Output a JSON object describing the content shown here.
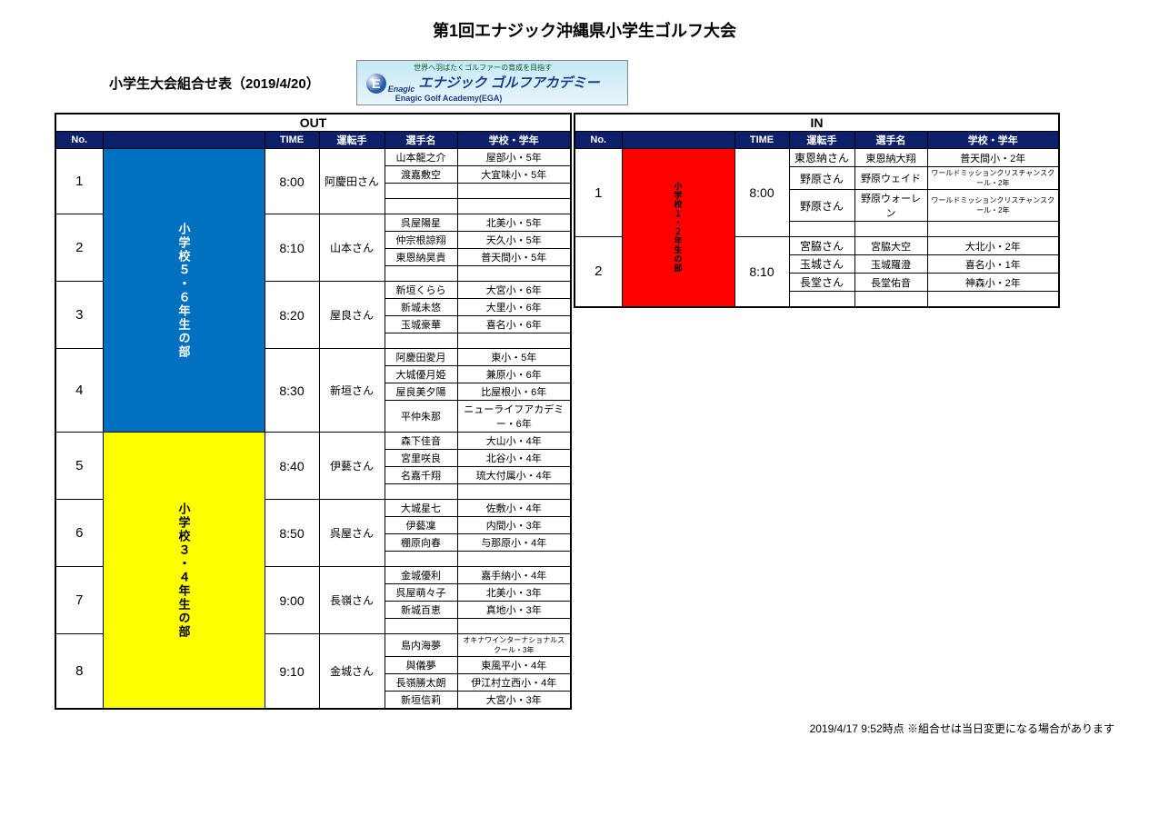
{
  "title": "第1回エナジック沖縄県小学生ゴルフ大会",
  "subtitle": "小学生大会組合せ表（2019/4/20）",
  "logo": {
    "tagline": "世界へ羽ばたくゴルファーの育成を目指す",
    "main_jp": "エナジック ゴルフアカデミー",
    "brand": "Enagic",
    "main_en": "Enagic Golf Academy(EGA)"
  },
  "headers": {
    "out": "OUT",
    "in": "IN",
    "no": "No.",
    "time": "TIME",
    "driver": "運転手",
    "player": "選手名",
    "school": "学校・学年"
  },
  "categories": {
    "blue": "小学校５・６年生の部",
    "yellow": "小学校３・４年生の部",
    "red": "小学校１・２年生の部"
  },
  "out_groups": [
    {
      "no": "1",
      "time": "8:00",
      "driver": "阿慶田さん",
      "players": [
        {
          "name": "山本龍之介",
          "school": "屋部小・5年"
        },
        {
          "name": "渡嘉敷空",
          "school": "大宜味小・5年"
        },
        {
          "name": "",
          "school": ""
        },
        {
          "name": "",
          "school": ""
        }
      ]
    },
    {
      "no": "2",
      "time": "8:10",
      "driver": "山本さん",
      "players": [
        {
          "name": "呉屋陽星",
          "school": "北美小・5年"
        },
        {
          "name": "仲宗根諒翔",
          "school": "天久小・5年"
        },
        {
          "name": "東恩納昊貴",
          "school": "普天間小・5年"
        },
        {
          "name": "",
          "school": ""
        }
      ]
    },
    {
      "no": "3",
      "time": "8:20",
      "driver": "屋良さん",
      "players": [
        {
          "name": "新垣くらら",
          "school": "大宮小・6年"
        },
        {
          "name": "新城未悠",
          "school": "大里小・6年"
        },
        {
          "name": "玉城豪華",
          "school": "喜名小・6年"
        },
        {
          "name": "",
          "school": ""
        }
      ]
    },
    {
      "no": "4",
      "time": "8:30",
      "driver": "新垣さん",
      "players": [
        {
          "name": "阿慶田愛月",
          "school": "東小・5年"
        },
        {
          "name": "大城優月姫",
          "school": "兼原小・6年"
        },
        {
          "name": "屋良美夕陽",
          "school": "比屋根小・6年"
        },
        {
          "name": "平仲朱那",
          "school": "ニューライフアカデミー・6年"
        }
      ]
    },
    {
      "no": "5",
      "time": "8:40",
      "driver": "伊藝さん",
      "players": [
        {
          "name": "森下佳音",
          "school": "大山小・4年"
        },
        {
          "name": "宮里咲良",
          "school": "北谷小・4年"
        },
        {
          "name": "名嘉千翔",
          "school": "琉大付属小・4年"
        },
        {
          "name": "",
          "school": ""
        }
      ]
    },
    {
      "no": "6",
      "time": "8:50",
      "driver": "呉屋さん",
      "players": [
        {
          "name": "大城星七",
          "school": "佐敷小・4年"
        },
        {
          "name": "伊藝凜",
          "school": "内間小・3年"
        },
        {
          "name": "棚原向春",
          "school": "与那原小・4年"
        },
        {
          "name": "",
          "school": ""
        }
      ]
    },
    {
      "no": "7",
      "time": "9:00",
      "driver": "長嶺さん",
      "players": [
        {
          "name": "金城優利",
          "school": "嘉手納小・4年"
        },
        {
          "name": "呉屋萌々子",
          "school": "北美小・3年"
        },
        {
          "name": "新城百恵",
          "school": "真地小・3年"
        },
        {
          "name": "",
          "school": ""
        }
      ]
    },
    {
      "no": "8",
      "time": "9:10",
      "driver": "金城さん",
      "players": [
        {
          "name": "島内海夢",
          "school": "オキナワインターナショナルスクール・3年",
          "small": true
        },
        {
          "name": "與儀夢",
          "school": "東風平小・4年"
        },
        {
          "name": "長嶺勝太朗",
          "school": "伊江村立西小・4年"
        },
        {
          "name": "新垣信莉",
          "school": "大宮小・3年"
        }
      ]
    }
  ],
  "in_groups": [
    {
      "no": "1",
      "time": "8:00",
      "players": [
        {
          "driver": "東恩納さん",
          "name": "東恩納大翔",
          "school": "普天間小・2年"
        },
        {
          "driver": "野原さん",
          "name": "野原ウェイド",
          "school": "ワールドミッションクリスチャンスクール・2年",
          "small": true
        },
        {
          "driver": "野原さん",
          "name": "野原ウォーレン",
          "school": "ワールドミッションクリスチャンスクール・2年",
          "small": true
        },
        {
          "driver": "",
          "name": "",
          "school": ""
        }
      ]
    },
    {
      "no": "2",
      "time": "8:10",
      "players": [
        {
          "driver": "宮脇さん",
          "name": "宮脇大空",
          "school": "大北小・2年"
        },
        {
          "driver": "玉城さん",
          "name": "玉城羅澄",
          "school": "喜名小・1年"
        },
        {
          "driver": "長堂さん",
          "name": "長堂佑音",
          "school": "神森小・2年"
        },
        {
          "driver": "",
          "name": "",
          "school": ""
        }
      ]
    }
  ],
  "footer": "2019/4/17 9:52時点 ※組合せは当日変更になる場合があります"
}
